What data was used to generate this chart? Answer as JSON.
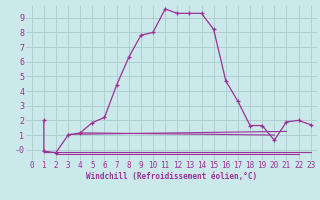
{
  "xlabel": "Windchill (Refroidissement éolien,°C)",
  "background_color": "#cbe8ea",
  "grid_color": "#b0d0d0",
  "line_color": "#993399",
  "xlim": [
    -0.5,
    23.5
  ],
  "ylim": [
    -0.7,
    9.8
  ],
  "xticks": [
    0,
    1,
    2,
    3,
    4,
    5,
    6,
    7,
    8,
    9,
    10,
    11,
    12,
    13,
    14,
    15,
    16,
    17,
    18,
    19,
    20,
    21,
    22,
    23
  ],
  "yticks": [
    0,
    1,
    2,
    3,
    4,
    5,
    6,
    7,
    8,
    9
  ],
  "ytick_labels": [
    "-0",
    "1",
    "2",
    "3",
    "4",
    "5",
    "6",
    "7",
    "8",
    "9"
  ],
  "main_series": [
    [
      1,
      2.0
    ],
    [
      1,
      -0.1
    ],
    [
      2,
      -0.2
    ],
    [
      3,
      1.0
    ],
    [
      4,
      1.15
    ],
    [
      5,
      1.85
    ],
    [
      6,
      2.2
    ],
    [
      7,
      4.4
    ],
    [
      8,
      6.3
    ],
    [
      9,
      7.8
    ],
    [
      10,
      8.0
    ],
    [
      11,
      9.6
    ],
    [
      12,
      9.3
    ],
    [
      13,
      9.3
    ],
    [
      14,
      9.3
    ],
    [
      15,
      8.2
    ],
    [
      16,
      4.7
    ],
    [
      17,
      3.3
    ],
    [
      18,
      1.65
    ],
    [
      19,
      1.65
    ],
    [
      20,
      0.65
    ],
    [
      21,
      1.9
    ],
    [
      22,
      2.0
    ],
    [
      23,
      1.7
    ]
  ],
  "flat_series": [
    {
      "x": [
        1,
        23
      ],
      "y": [
        -0.15,
        -0.15
      ]
    },
    {
      "x": [
        2,
        22
      ],
      "y": [
        -0.3,
        -0.3
      ]
    },
    {
      "x": [
        3,
        21
      ],
      "y": [
        1.05,
        1.25
      ]
    },
    {
      "x": [
        4,
        20
      ],
      "y": [
        1.15,
        1.0
      ]
    }
  ]
}
